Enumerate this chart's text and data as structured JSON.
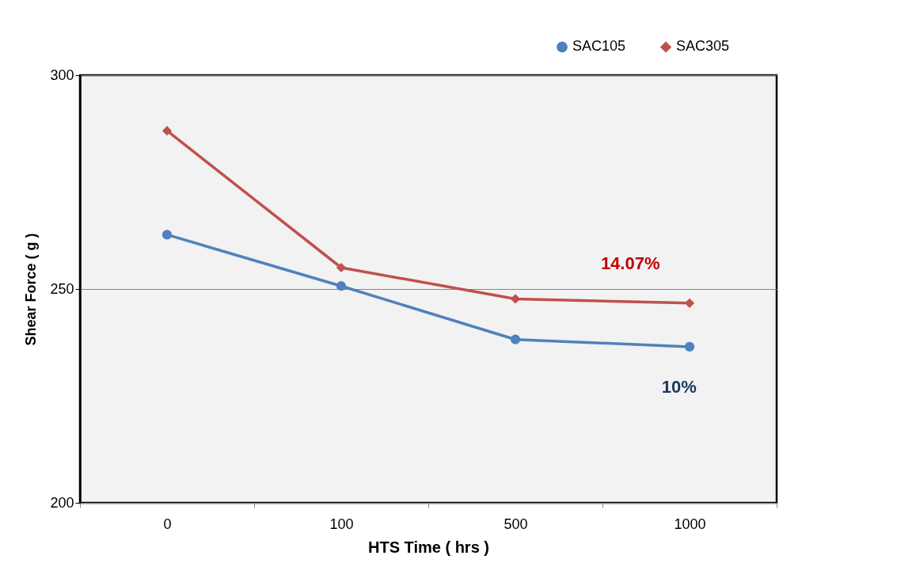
{
  "chart_data": {
    "type": "line",
    "categories": [
      "0",
      "100",
      "500",
      "1000"
    ],
    "xlabel": "HTS  Time ( hrs )",
    "ylabel": "Shear Force ( g )",
    "ylim": [
      200,
      300
    ],
    "yticks": [
      200,
      250,
      300
    ],
    "grid": "y",
    "legend": "top right",
    "series": [
      {
        "name": "SAC105",
        "color": "#4f81bd",
        "marker": "circle",
        "values": [
          262.7,
          250.7,
          238.2,
          236.5
        ]
      },
      {
        "name": "SAC305",
        "color": "#c0504d",
        "marker": "diamond",
        "values": [
          287.0,
          255.0,
          247.7,
          246.7
        ]
      }
    ],
    "annotations": [
      "14.07%",
      "10%"
    ]
  }
}
